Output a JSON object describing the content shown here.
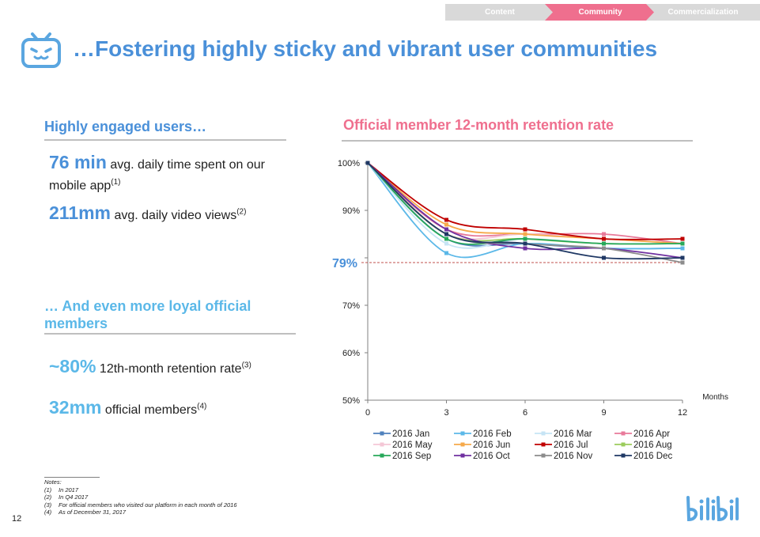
{
  "nav": {
    "tabs": [
      {
        "label": "Content",
        "active": false
      },
      {
        "label": "Community",
        "active": true
      },
      {
        "label": "Commercialization",
        "active": false
      }
    ]
  },
  "header": {
    "title": "…Fostering highly sticky and vibrant user communities"
  },
  "left": {
    "users_heading": "Highly engaged users…",
    "stat1_value": "76 min",
    "stat1_text": " avg. daily time spent on our mobile app",
    "stat1_note": "(1)",
    "stat2_value": "211mm",
    "stat2_text": " avg. daily video views",
    "stat2_note": "(2)",
    "loyal_heading": "… And even more loyal official members",
    "stat3_value": "~80%",
    "stat3_text": " 12th-month retention rate",
    "stat3_note": "(3)",
    "stat4_value": "32mm",
    "stat4_text": " official members",
    "stat4_note": "(4)"
  },
  "notes": {
    "heading": "Notes:",
    "items": [
      {
        "num": "(1)",
        "text": "In 2017"
      },
      {
        "num": "(2)",
        "text": "In Q4 2017"
      },
      {
        "num": "(3)",
        "text": "For official members who visited our platform in each month of 2016"
      },
      {
        "num": "(4)",
        "text": "As of December 31, 2017"
      }
    ]
  },
  "page_number": "12",
  "chart_data": {
    "type": "line",
    "title": "Official member 12-month retention rate",
    "xlabel": "Months",
    "ylabel": "",
    "x": [
      0,
      3,
      6,
      9,
      12
    ],
    "x_ticks": [
      "0",
      "3",
      "6",
      "9",
      "12"
    ],
    "ylim": [
      50,
      100
    ],
    "y_ticks": [
      50,
      60,
      70,
      80,
      90,
      100
    ],
    "y_tick_labels": [
      "50%",
      "60%",
      "70%",
      "",
      "90%",
      "100%"
    ],
    "reference_line": {
      "value": 79,
      "label": "79%",
      "color": "#c0504d"
    },
    "legend_position": "bottom",
    "series": [
      {
        "name": "2016 Jan",
        "color": "#4f81bd",
        "values": [
          100,
          84,
          83,
          82,
          82
        ]
      },
      {
        "name": "2016 Feb",
        "color": "#5bb8e8",
        "values": [
          100,
          81,
          83,
          82,
          82
        ]
      },
      {
        "name": "2016 Mar",
        "color": "#c6e4f5",
        "values": [
          100,
          83,
          84,
          83,
          83
        ]
      },
      {
        "name": "2016 Apr",
        "color": "#e87a9a",
        "values": [
          100,
          86,
          85,
          85,
          83
        ]
      },
      {
        "name": "2016 May",
        "color": "#f4c7d6",
        "values": [
          100,
          85,
          85,
          84,
          83
        ]
      },
      {
        "name": "2016 Jun",
        "color": "#f6a94a",
        "values": [
          100,
          87,
          85,
          84,
          83
        ]
      },
      {
        "name": "2016 Jul",
        "color": "#c00000",
        "values": [
          100,
          88,
          86,
          84,
          84
        ]
      },
      {
        "name": "2016 Aug",
        "color": "#9bcc5c",
        "values": [
          100,
          85,
          84,
          83,
          83
        ]
      },
      {
        "name": "2016 Sep",
        "color": "#27a85a",
        "values": [
          100,
          84,
          84,
          83,
          83
        ]
      },
      {
        "name": "2016 Oct",
        "color": "#7030a0",
        "values": [
          100,
          86,
          82,
          82,
          80
        ]
      },
      {
        "name": "2016 Nov",
        "color": "#8c8c8c",
        "values": [
          100,
          85,
          83,
          82,
          79
        ]
      },
      {
        "name": "2016 Dec",
        "color": "#1f3864",
        "values": [
          100,
          85,
          83,
          80,
          80
        ]
      }
    ]
  }
}
